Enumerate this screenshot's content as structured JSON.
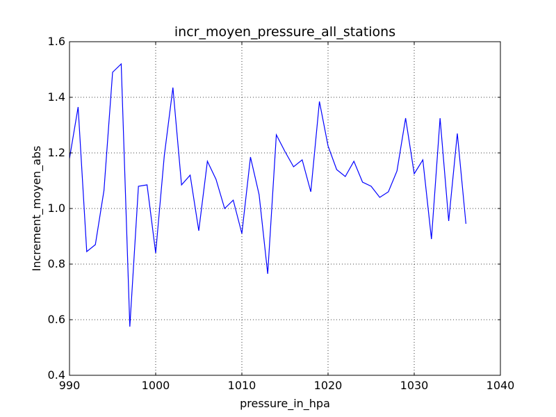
{
  "chart_data": {
    "type": "line",
    "title": "incr_moyen_pressure_all_stations",
    "xlabel": "pressure_in_hpa",
    "ylabel": "Increment_moyen_abs",
    "xlim": [
      990,
      1040
    ],
    "ylim": [
      0.4,
      1.6
    ],
    "x_ticks": [
      990,
      1000,
      1010,
      1020,
      1030,
      1040
    ],
    "x_tick_labels": [
      "990",
      "1000",
      "1010",
      "1020",
      "1030",
      "1040"
    ],
    "y_ticks": [
      0.4,
      0.6,
      0.8,
      1.0,
      1.2,
      1.4,
      1.6
    ],
    "y_tick_labels": [
      "0.4",
      "0.6",
      "0.8",
      "1.0",
      "1.2",
      "1.4",
      "1.6"
    ],
    "grid": true,
    "line_color": "#0000ff",
    "series": [
      {
        "x": [
          990,
          991,
          992,
          993,
          994,
          995,
          996,
          997,
          998,
          999,
          1000,
          1001,
          1002,
          1003,
          1004,
          1005,
          1006,
          1007,
          1008,
          1009,
          1010,
          1011,
          1012,
          1013,
          1014,
          1015,
          1016,
          1017,
          1018,
          1019,
          1020,
          1021,
          1022,
          1023,
          1024,
          1025,
          1026,
          1027,
          1028,
          1029,
          1030,
          1031,
          1032,
          1033,
          1034,
          1035,
          1036
        ],
        "y": [
          1.18,
          1.365,
          0.845,
          0.87,
          1.065,
          1.49,
          1.52,
          0.575,
          1.08,
          1.085,
          0.84,
          1.19,
          1.435,
          1.085,
          1.12,
          0.92,
          1.17,
          1.105,
          1.0,
          1.03,
          0.91,
          1.185,
          1.05,
          0.765,
          1.265,
          1.205,
          1.15,
          1.175,
          1.06,
          1.385,
          1.225,
          1.14,
          1.115,
          1.17,
          1.095,
          1.08,
          1.04,
          1.06,
          1.135,
          1.325,
          1.125,
          1.175,
          0.89,
          1.325,
          0.955,
          1.27,
          0.945
        ]
      }
    ]
  }
}
